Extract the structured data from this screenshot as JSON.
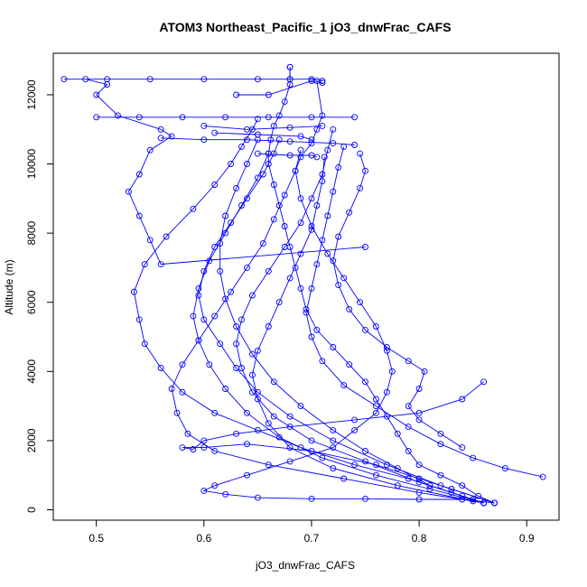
{
  "chart_data": {
    "type": "line",
    "title": "ATOM3 Northeast_Pacific_1 jO3_dnwFrac_CAFS",
    "xlabel": "jO3_dnwFrac_CAFS",
    "ylabel": "Altitude (m)",
    "xlim": [
      0.46,
      0.93
    ],
    "ylim": [
      -300,
      13200
    ],
    "xticks": [
      "0.5",
      "0.6",
      "0.7",
      "0.8",
      "0.9"
    ],
    "xtick_values": [
      0.5,
      0.6,
      0.7,
      0.8,
      0.9
    ],
    "yticks": [
      "0",
      "2000",
      "4000",
      "6000",
      "8000",
      "10000",
      "12000"
    ],
    "ytick_values": [
      0,
      2000,
      4000,
      6000,
      8000,
      10000,
      12000
    ],
    "grid": false,
    "marker": "open-circle",
    "color": "#0000ff",
    "series": [
      {
        "values": [
          [
            0.87,
            200
          ],
          [
            0.855,
            400
          ],
          [
            0.84,
            700
          ],
          [
            0.82,
            1000
          ],
          [
            0.8,
            1300
          ],
          [
            0.79,
            1700
          ],
          [
            0.78,
            2200
          ],
          [
            0.77,
            2700
          ],
          [
            0.76,
            3200
          ],
          [
            0.75,
            3700
          ],
          [
            0.735,
            4200
          ],
          [
            0.72,
            4700
          ],
          [
            0.705,
            5200
          ],
          [
            0.695,
            5800
          ],
          [
            0.69,
            6400
          ],
          [
            0.685,
            7000
          ],
          [
            0.68,
            7600
          ],
          [
            0.675,
            8200
          ],
          [
            0.67,
            8800
          ],
          [
            0.665,
            9400
          ],
          [
            0.66,
            10000
          ],
          [
            0.66,
            10300
          ],
          [
            0.662,
            10700
          ],
          [
            0.665,
            11100
          ],
          [
            0.67,
            11400
          ],
          [
            0.675,
            11800
          ],
          [
            0.68,
            12300
          ],
          [
            0.68,
            12800
          ]
        ]
      },
      {
        "values": [
          [
            0.68,
            12800
          ],
          [
            0.68,
            12450
          ],
          [
            0.65,
            12450
          ],
          [
            0.6,
            12450
          ],
          [
            0.55,
            12450
          ],
          [
            0.51,
            12450
          ],
          [
            0.47,
            12450
          ],
          [
            0.49,
            12450
          ],
          [
            0.51,
            12300
          ],
          [
            0.5,
            12000
          ],
          [
            0.52,
            11400
          ],
          [
            0.56,
            11000
          ],
          [
            0.57,
            10800
          ],
          [
            0.55,
            10400
          ],
          [
            0.54,
            9700
          ],
          [
            0.53,
            9200
          ],
          [
            0.54,
            8500
          ],
          [
            0.55,
            7800
          ],
          [
            0.56,
            7100
          ],
          [
            0.75,
            7600
          ]
        ]
      },
      {
        "values": [
          [
            0.87,
            200
          ],
          [
            0.83,
            600
          ],
          [
            0.8,
            900
          ],
          [
            0.76,
            1300
          ],
          [
            0.7,
            1700
          ],
          [
            0.64,
            1900
          ],
          [
            0.6,
            1800
          ],
          [
            0.58,
            1800
          ],
          [
            0.59,
            1750
          ],
          [
            0.6,
            2000
          ],
          [
            0.63,
            2200
          ],
          [
            0.68,
            2400
          ],
          [
            0.74,
            2600
          ],
          [
            0.8,
            2800
          ],
          [
            0.84,
            3200
          ],
          [
            0.86,
            3700
          ]
        ]
      },
      {
        "values": [
          [
            0.87,
            200
          ],
          [
            0.84,
            300
          ],
          [
            0.8,
            300
          ],
          [
            0.75,
            320
          ],
          [
            0.7,
            320
          ],
          [
            0.65,
            350
          ],
          [
            0.62,
            450
          ],
          [
            0.6,
            550
          ],
          [
            0.61,
            700
          ],
          [
            0.64,
            1000
          ],
          [
            0.68,
            1400
          ],
          [
            0.72,
            1800
          ],
          [
            0.74,
            2300
          ],
          [
            0.76,
            2800
          ],
          [
            0.77,
            3400
          ],
          [
            0.775,
            4000
          ],
          [
            0.77,
            4600
          ],
          [
            0.76,
            5300
          ],
          [
            0.745,
            6000
          ],
          [
            0.73,
            6700
          ],
          [
            0.715,
            7400
          ],
          [
            0.7,
            8200
          ],
          [
            0.69,
            9000
          ],
          [
            0.685,
            9800
          ],
          [
            0.69,
            10200
          ],
          [
            0.7,
            10600
          ],
          [
            0.705,
            11000
          ],
          [
            0.71,
            11400
          ],
          [
            0.705,
            12400
          ]
        ]
      },
      {
        "values": [
          [
            0.86,
            200
          ],
          [
            0.83,
            500
          ],
          [
            0.79,
            900
          ],
          [
            0.74,
            1300
          ],
          [
            0.69,
            1800
          ],
          [
            0.65,
            2300
          ],
          [
            0.61,
            2800
          ],
          [
            0.58,
            3400
          ],
          [
            0.56,
            4100
          ],
          [
            0.545,
            4800
          ],
          [
            0.54,
            5500
          ],
          [
            0.535,
            6300
          ],
          [
            0.545,
            7100
          ],
          [
            0.565,
            7900
          ],
          [
            0.59,
            8700
          ],
          [
            0.61,
            9400
          ],
          [
            0.625,
            10000
          ],
          [
            0.635,
            10500
          ],
          [
            0.645,
            11000
          ],
          [
            0.65,
            11300
          ]
        ]
      },
      {
        "values": [
          [
            0.86,
            200
          ],
          [
            0.84,
            400
          ],
          [
            0.81,
            700
          ],
          [
            0.78,
            1200
          ],
          [
            0.75,
            1700
          ],
          [
            0.72,
            2300
          ],
          [
            0.69,
            3000
          ],
          [
            0.665,
            3700
          ],
          [
            0.645,
            4500
          ],
          [
            0.63,
            5300
          ],
          [
            0.62,
            6100
          ],
          [
            0.615,
            6900
          ],
          [
            0.615,
            7700
          ],
          [
            0.62,
            8500
          ],
          [
            0.63,
            9300
          ],
          [
            0.64,
            10000
          ],
          [
            0.65,
            10700
          ]
        ]
      },
      {
        "values": [
          [
            0.915,
            950
          ],
          [
            0.88,
            1200
          ],
          [
            0.85,
            1500
          ],
          [
            0.82,
            1900
          ],
          [
            0.79,
            2400
          ],
          [
            0.76,
            3000
          ],
          [
            0.73,
            3600
          ],
          [
            0.71,
            4300
          ],
          [
            0.7,
            5000
          ],
          [
            0.695,
            5700
          ],
          [
            0.7,
            6400
          ],
          [
            0.705,
            7100
          ],
          [
            0.71,
            7800
          ],
          [
            0.715,
            8500
          ],
          [
            0.72,
            9200
          ],
          [
            0.725,
            9900
          ],
          [
            0.73,
            10500
          ]
        ]
      },
      {
        "values": [
          [
            0.84,
            1800
          ],
          [
            0.82,
            2200
          ],
          [
            0.8,
            2600
          ],
          [
            0.79,
            3000
          ],
          [
            0.8,
            3500
          ],
          [
            0.805,
            4000
          ],
          [
            0.79,
            4300
          ],
          [
            0.77,
            4700
          ],
          [
            0.75,
            5200
          ],
          [
            0.735,
            5800
          ],
          [
            0.725,
            6500
          ],
          [
            0.72,
            7200
          ],
          [
            0.725,
            7900
          ],
          [
            0.735,
            8600
          ],
          [
            0.745,
            9300
          ],
          [
            0.75,
            9800
          ],
          [
            0.745,
            10300
          ]
        ]
      },
      {
        "values": [
          [
            0.87,
            200
          ],
          [
            0.82,
            700
          ],
          [
            0.77,
            1300
          ],
          [
            0.72,
            2000
          ],
          [
            0.68,
            2700
          ],
          [
            0.65,
            3400
          ],
          [
            0.63,
            4100
          ],
          [
            0.615,
            4800
          ],
          [
            0.6,
            5500
          ],
          [
            0.595,
            6200
          ],
          [
            0.6,
            6900
          ],
          [
            0.61,
            7600
          ],
          [
            0.625,
            8300
          ],
          [
            0.64,
            9000
          ],
          [
            0.655,
            9700
          ],
          [
            0.665,
            10300
          ],
          [
            0.67,
            10700
          ]
        ]
      },
      {
        "values": [
          [
            0.86,
            200
          ],
          [
            0.81,
            600
          ],
          [
            0.76,
            1000
          ],
          [
            0.71,
            1500
          ],
          [
            0.67,
            2100
          ],
          [
            0.64,
            2800
          ],
          [
            0.62,
            3500
          ],
          [
            0.605,
            4200
          ],
          [
            0.595,
            4900
          ],
          [
            0.59,
            5600
          ],
          [
            0.595,
            6400
          ],
          [
            0.605,
            7200
          ],
          [
            0.62,
            8000
          ],
          [
            0.635,
            8800
          ],
          [
            0.65,
            9600
          ],
          [
            0.66,
            10300
          ]
        ]
      },
      {
        "values": [
          [
            0.85,
            300
          ],
          [
            0.8,
            800
          ],
          [
            0.75,
            1400
          ],
          [
            0.7,
            2000
          ],
          [
            0.665,
            2700
          ],
          [
            0.645,
            3400
          ],
          [
            0.635,
            4100
          ],
          [
            0.63,
            4800
          ],
          [
            0.635,
            5500
          ],
          [
            0.645,
            6200
          ],
          [
            0.66,
            6900
          ],
          [
            0.675,
            7600
          ],
          [
            0.69,
            8300
          ],
          [
            0.7,
            9000
          ],
          [
            0.71,
            9700
          ],
          [
            0.715,
            10400
          ],
          [
            0.72,
            11000
          ]
        ]
      },
      {
        "values": [
          [
            0.86,
            200
          ],
          [
            0.8,
            500
          ],
          [
            0.73,
            900
          ],
          [
            0.66,
            1300
          ],
          [
            0.61,
            1700
          ],
          [
            0.585,
            2200
          ],
          [
            0.575,
            2800
          ],
          [
            0.57,
            3500
          ],
          [
            0.58,
            4200
          ],
          [
            0.595,
            4900
          ],
          [
            0.61,
            5600
          ],
          [
            0.625,
            6300
          ],
          [
            0.64,
            7000
          ],
          [
            0.655,
            7700
          ],
          [
            0.665,
            8400
          ],
          [
            0.675,
            9100
          ],
          [
            0.685,
            9800
          ],
          [
            0.69,
            10400
          ]
        ]
      },
      {
        "values": [
          [
            0.85,
            250
          ],
          [
            0.78,
            700
          ],
          [
            0.72,
            1200
          ],
          [
            0.68,
            1800
          ],
          [
            0.66,
            2500
          ],
          [
            0.65,
            3200
          ],
          [
            0.645,
            3900
          ],
          [
            0.65,
            4600
          ],
          [
            0.66,
            5300
          ],
          [
            0.67,
            6000
          ],
          [
            0.68,
            6700
          ],
          [
            0.69,
            7400
          ],
          [
            0.7,
            8100
          ],
          [
            0.705,
            8800
          ],
          [
            0.71,
            9500
          ],
          [
            0.712,
            10200
          ]
        ]
      },
      {
        "values": [
          [
            0.5,
            11350
          ],
          [
            0.54,
            11350
          ],
          [
            0.58,
            11350
          ],
          [
            0.62,
            11350
          ],
          [
            0.66,
            11350
          ],
          [
            0.7,
            11350
          ],
          [
            0.74,
            11350
          ]
        ]
      },
      {
        "values": [
          [
            0.56,
            10750
          ],
          [
            0.6,
            10700
          ],
          [
            0.64,
            10700
          ],
          [
            0.68,
            10650
          ],
          [
            0.72,
            10600
          ],
          [
            0.74,
            10550
          ]
        ]
      },
      {
        "values": [
          [
            0.6,
            11100
          ],
          [
            0.64,
            11000
          ],
          [
            0.68,
            11050
          ],
          [
            0.71,
            11100
          ]
        ]
      },
      {
        "values": [
          [
            0.61,
            10900
          ],
          [
            0.65,
            10850
          ],
          [
            0.69,
            10800
          ],
          [
            0.7,
            10700
          ]
        ]
      },
      {
        "values": [
          [
            0.63,
            12000
          ],
          [
            0.66,
            12000
          ],
          [
            0.7,
            12400
          ],
          [
            0.71,
            12350
          ]
        ]
      },
      {
        "values": [
          [
            0.65,
            10300
          ],
          [
            0.68,
            10250
          ],
          [
            0.7,
            10250
          ],
          [
            0.705,
            10200
          ]
        ]
      },
      {
        "values": [
          [
            0.68,
            12450
          ],
          [
            0.7,
            12450
          ],
          [
            0.71,
            12400
          ]
        ]
      }
    ]
  }
}
